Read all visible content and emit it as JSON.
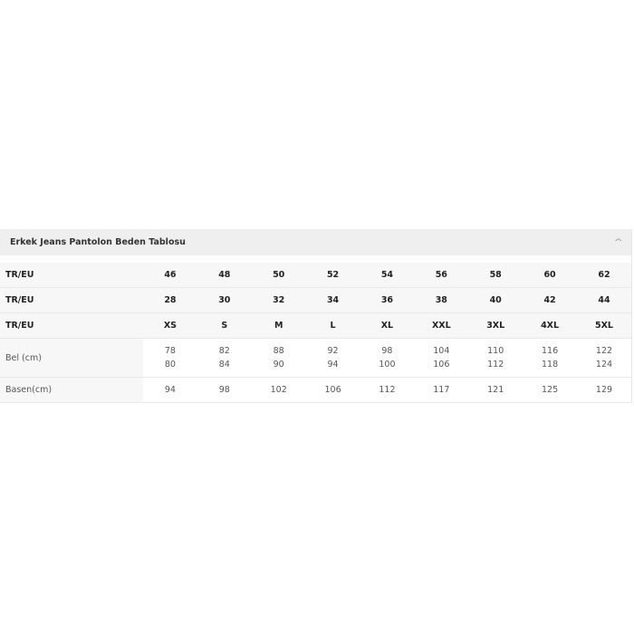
{
  "panel": {
    "title": "Erkek Jeans Pantolon Beden Tablosu",
    "collapse_icon": "chevron-up-icon"
  },
  "rows": [
    {
      "label": "TR/EU",
      "values": [
        "46",
        "48",
        "50",
        "52",
        "54",
        "56",
        "58",
        "60",
        "62"
      ]
    },
    {
      "label": "TR/EU",
      "values": [
        "28",
        "30",
        "32",
        "34",
        "36",
        "38",
        "40",
        "42",
        "44"
      ]
    },
    {
      "label": "TR/EU",
      "values": [
        "XS",
        "S",
        "M",
        "L",
        "XL",
        "XXL",
        "3XL",
        "4XL",
        "5XL"
      ]
    },
    {
      "label": "Bel (cm)",
      "values": [
        [
          "78",
          "80"
        ],
        [
          "82",
          "84"
        ],
        [
          "88",
          "90"
        ],
        [
          "92",
          "94"
        ],
        [
          "98",
          "100"
        ],
        [
          "104",
          "106"
        ],
        [
          "110",
          "112"
        ],
        [
          "116",
          "118"
        ],
        [
          "122",
          "124"
        ]
      ]
    },
    {
      "label": "Basen(cm)",
      "values": [
        "94",
        "98",
        "102",
        "106",
        "112",
        "117",
        "121",
        "125",
        "129"
      ]
    }
  ]
}
